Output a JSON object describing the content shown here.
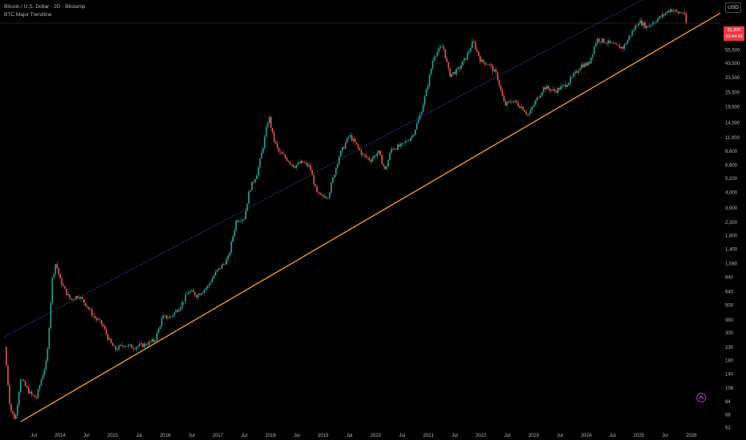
{
  "header": {
    "symbol_line": "Bitcoin / U.S. Dollar · 2D · Bitstamp",
    "indicator_name": "BTC Major Trendline"
  },
  "currency_button": "USD",
  "price_badge": {
    "price": "91,206",
    "countdown": "10:44:46"
  },
  "colors": {
    "up": "#26a69a",
    "down": "#ef5350",
    "trendline": "#f7931a",
    "channel": "#3f51d6",
    "badge": "#f23645",
    "background": "#000000"
  },
  "icons": {
    "watermark": "tradingview-logo-icon"
  },
  "chart_data": {
    "type": "line",
    "scale": "log",
    "grid": false,
    "y_ticks": [
      52,
      66,
      84,
      108,
      140,
      180,
      230,
      300,
      380,
      500,
      640,
      840,
      1080,
      1400,
      1800,
      2300,
      3000,
      4000,
      5200,
      6600,
      8600,
      11000,
      14500,
      19500,
      25500,
      33500,
      43500,
      55500,
      73000,
      91206
    ],
    "x_ticks": [
      "Jul",
      "2014",
      "Jul",
      "2015",
      "Jul",
      "2016",
      "Jul",
      "2017",
      "Jul",
      "2018",
      "Jul",
      "2019",
      "Jul",
      "2020",
      "Jul",
      "2021",
      "Jul",
      "2022",
      "Jul",
      "2023",
      "Jul",
      "2024",
      "Jul",
      "2025",
      "Jul",
      "2026"
    ],
    "x_range": [
      2012.95,
      2026.55
    ],
    "ylim": [
      48,
      140000
    ],
    "price_series": {
      "x": [
        2012.95,
        2013.05,
        2013.15,
        2013.25,
        2013.35,
        2013.45,
        2013.55,
        2013.65,
        2013.75,
        2013.85,
        2013.92,
        2014.0,
        2014.1,
        2014.2,
        2014.35,
        2014.5,
        2014.65,
        2014.8,
        2014.95,
        2015.05,
        2015.2,
        2015.4,
        2015.6,
        2015.8,
        2015.95,
        2016.1,
        2016.3,
        2016.45,
        2016.6,
        2016.8,
        2016.95,
        2017.05,
        2017.2,
        2017.35,
        2017.5,
        2017.6,
        2017.75,
        2017.85,
        2017.97,
        2018.05,
        2018.15,
        2018.3,
        2018.45,
        2018.6,
        2018.75,
        2018.87,
        2018.95,
        2019.1,
        2019.3,
        2019.5,
        2019.6,
        2019.75,
        2019.9,
        2020.05,
        2020.18,
        2020.3,
        2020.5,
        2020.7,
        2020.85,
        2020.98,
        2021.1,
        2021.28,
        2021.4,
        2021.55,
        2021.7,
        2021.85,
        2022.0,
        2022.15,
        2022.3,
        2022.45,
        2022.6,
        2022.8,
        2022.9,
        2023.05,
        2023.2,
        2023.4,
        2023.6,
        2023.75,
        2023.9,
        2024.05,
        2024.2,
        2024.4,
        2024.55,
        2024.7,
        2024.85,
        2025.0,
        2025.15,
        2025.3,
        2025.45,
        2025.6,
        2025.75,
        2025.85,
        2025.9
      ],
      "y": [
        230,
        75,
        60,
        130,
        110,
        95,
        90,
        130,
        180,
        800,
        1100,
        800,
        650,
        550,
        600,
        500,
        400,
        350,
        250,
        220,
        240,
        230,
        240,
        260,
        400,
        400,
        500,
        650,
        600,
        700,
        900,
        1000,
        1200,
        2400,
        2500,
        4200,
        5800,
        9000,
        16500,
        11000,
        8500,
        7500,
        6500,
        7000,
        6400,
        4000,
        3700,
        3800,
        7800,
        11500,
        10000,
        8000,
        7300,
        8500,
        6000,
        9000,
        9500,
        11500,
        17000,
        28000,
        50000,
        60000,
        35000,
        38000,
        47000,
        65000,
        45000,
        43000,
        35000,
        20000,
        22000,
        19000,
        16500,
        22000,
        28000,
        26000,
        29000,
        34000,
        42000,
        43000,
        68000,
        64000,
        60000,
        58000,
        75000,
        95000,
        85000,
        95000,
        105000,
        118000,
        110000,
        112000,
        91206
      ]
    },
    "series": [
      {
        "name": "BTC Major Trendline",
        "x": [
          2013.25,
          2026.55
        ],
        "y": [
          58,
          110000
        ]
      }
    ],
    "channel_line": {
      "x": [
        2012.95,
        2025.55
      ],
      "y": [
        280,
        180000
      ]
    }
  }
}
